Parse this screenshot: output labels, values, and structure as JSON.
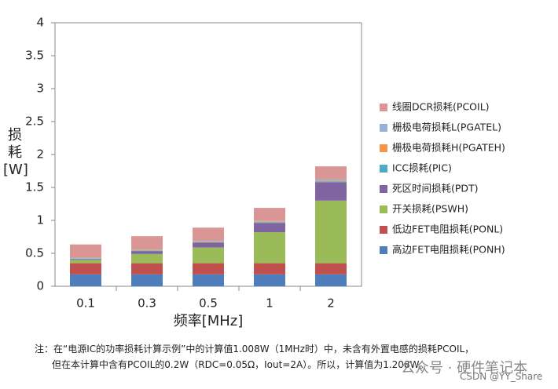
{
  "chart_data": {
    "type": "stacked_bar",
    "ylabel": "损耗[W]",
    "xlabel": "频率[MHz]",
    "categories": [
      "0.1",
      "0.3",
      "0.5",
      "1",
      "2"
    ],
    "ylim": [
      0,
      4
    ],
    "yticks": [
      0,
      0.5,
      1,
      1.5,
      2,
      2.5,
      3,
      3.5,
      4
    ],
    "series": [
      {
        "name": "高边FET电阻损耗(PONH)",
        "color": "#4f7ebd",
        "values": [
          0.18,
          0.18,
          0.18,
          0.18,
          0.18
        ]
      },
      {
        "name": "低边FET电阻损耗(PONL)",
        "color": "#c0504d",
        "values": [
          0.17,
          0.17,
          0.17,
          0.17,
          0.17
        ]
      },
      {
        "name": "开关损耗(PSWH)",
        "color": "#9bbb59",
        "values": [
          0.05,
          0.14,
          0.24,
          0.47,
          0.95
        ]
      },
      {
        "name": "死区时间损耗(PDT)",
        "color": "#8064a2",
        "values": [
          0.01,
          0.04,
          0.07,
          0.14,
          0.28
        ]
      },
      {
        "name": "ICC损耗(PIC)",
        "color": "#4bacc6",
        "values": [
          0.01,
          0.01,
          0.01,
          0.01,
          0.01
        ]
      },
      {
        "name": "栅极电荷损耗H(PGATEH)",
        "color": "#f79646",
        "values": [
          0.005,
          0.01,
          0.01,
          0.01,
          0.01
        ]
      },
      {
        "name": "栅极电荷损耗L(PGATEL)",
        "color": "#95b3d7",
        "values": [
          0.01,
          0.01,
          0.01,
          0.01,
          0.02
        ]
      },
      {
        "name": "线圈DCR损耗(PCOIL)",
        "color": "#d99694",
        "values": [
          0.2,
          0.2,
          0.2,
          0.2,
          0.2
        ]
      }
    ]
  },
  "note": [
    "注：在“电源IC的功率损耗计算示例”中的计算值1.008W（1MHz时）中，未含有外置电感的损耗PCOIL，",
    "但在本计算中含有PCOIL的0.2W（RDC=0.05Ω，Iout=2A）。所以，计算值为1.208W。"
  ],
  "watermark": "公众号 · 硬件笔记本",
  "credit": "CSDN @YY_Share"
}
